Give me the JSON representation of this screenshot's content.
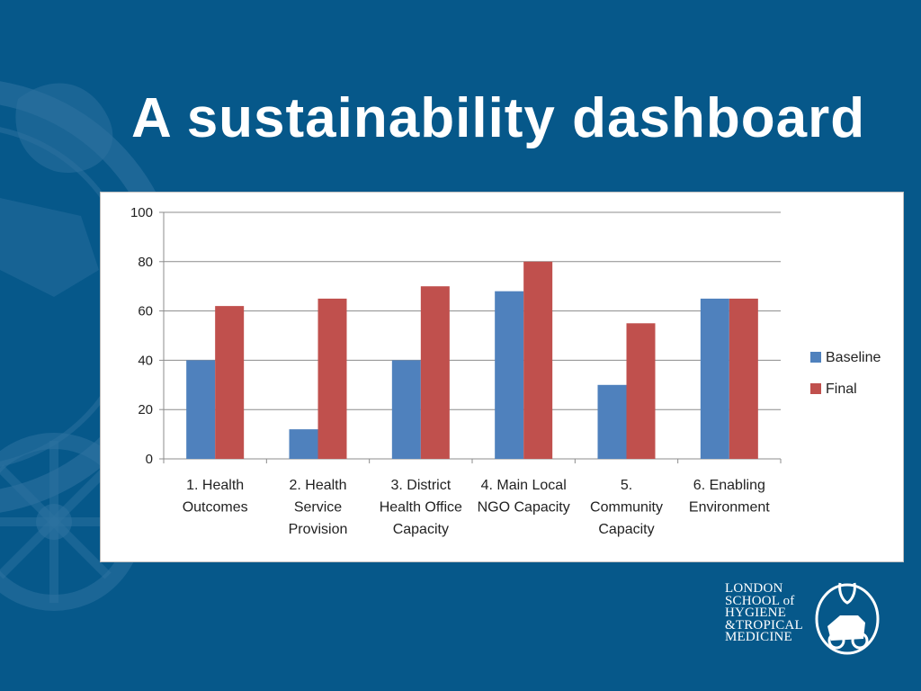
{
  "slide": {
    "title": "A sustainability dashboard"
  },
  "logo": {
    "lines": [
      "LONDON",
      "SCHOOL of",
      "HYGIENE",
      "&TROPICAL",
      "MEDICINE"
    ]
  },
  "colors": {
    "background": "#06588a",
    "baseline": "#4f81bd",
    "final": "#c0504d"
  },
  "chart_data": {
    "type": "bar",
    "categories": [
      [
        "1. Health",
        "Outcomes"
      ],
      [
        "2. Health",
        "Service",
        "Provision"
      ],
      [
        "3. District",
        "Health Office",
        "Capacity"
      ],
      [
        "4. Main Local",
        "NGO Capacity"
      ],
      [
        "5.",
        "Community",
        "Capacity"
      ],
      [
        "6. Enabling",
        "Environment"
      ]
    ],
    "series": [
      {
        "name": "Baseline",
        "color": "#4f81bd",
        "values": [
          40,
          12,
          40,
          68,
          30,
          65
        ]
      },
      {
        "name": "Final",
        "color": "#c0504d",
        "values": [
          62,
          65,
          70,
          80,
          55,
          65
        ]
      }
    ],
    "ylim": [
      0,
      100
    ],
    "yticks": [
      0,
      20,
      40,
      60,
      80,
      100
    ],
    "grid": true,
    "legend": "right"
  }
}
